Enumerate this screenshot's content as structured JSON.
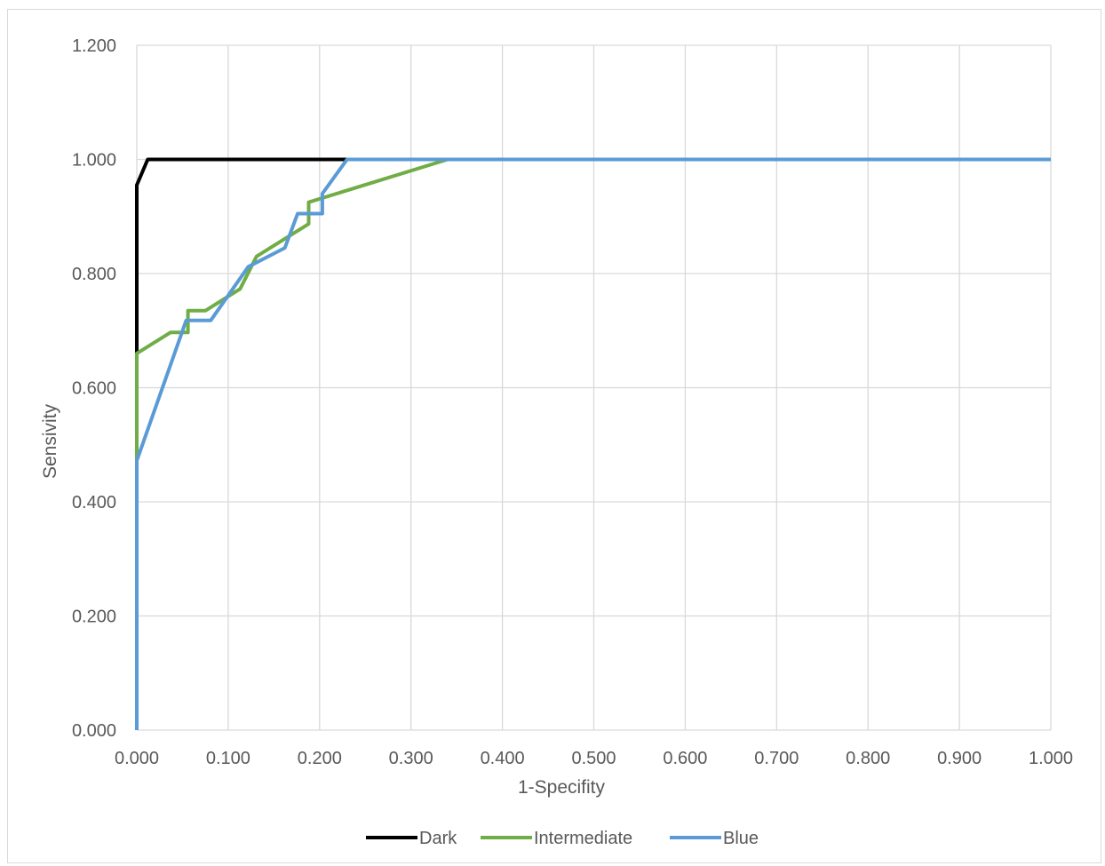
{
  "chart_data": {
    "type": "line",
    "title": "",
    "xlabel": "1-Specifity",
    "ylabel": "Sensivity",
    "xlim": [
      0,
      1
    ],
    "ylim": [
      0,
      1.2
    ],
    "x_ticks": [
      "0.000",
      "0.100",
      "0.200",
      "0.300",
      "0.400",
      "0.500",
      "0.600",
      "0.700",
      "0.800",
      "0.900",
      "1.000"
    ],
    "y_ticks": [
      "0.000",
      "0.200",
      "0.400",
      "0.600",
      "0.800",
      "1.000",
      "1.200"
    ],
    "grid": true,
    "legend_position": "bottom",
    "series": [
      {
        "name": "Dark",
        "color": "#000000",
        "points": [
          [
            0,
            0
          ],
          [
            0,
            0.66
          ],
          [
            0,
            0.955
          ],
          [
            0.012,
            1.0
          ],
          [
            0.23,
            1.0
          ],
          [
            1.0,
            1.0
          ]
        ]
      },
      {
        "name": "Intermediate",
        "color": "#70ad47",
        "points": [
          [
            0,
            0
          ],
          [
            0,
            0.66
          ],
          [
            0.037,
            0.697
          ],
          [
            0.056,
            0.697
          ],
          [
            0.056,
            0.735
          ],
          [
            0.075,
            0.735
          ],
          [
            0.113,
            0.773
          ],
          [
            0.131,
            0.83
          ],
          [
            0.188,
            0.887
          ],
          [
            0.188,
            0.925
          ],
          [
            0.34,
            1.0
          ],
          [
            1.0,
            1.0
          ]
        ]
      },
      {
        "name": "Blue",
        "color": "#5b9bd5",
        "points": [
          [
            0,
            0
          ],
          [
            0,
            0.472
          ],
          [
            0.054,
            0.718
          ],
          [
            0.081,
            0.718
          ],
          [
            0.122,
            0.812
          ],
          [
            0.162,
            0.845
          ],
          [
            0.176,
            0.905
          ],
          [
            0.176,
            0.905
          ],
          [
            0.203,
            0.905
          ],
          [
            0.203,
            0.94
          ],
          [
            0.23,
            1.0
          ],
          [
            1.0,
            1.0
          ]
        ]
      }
    ]
  }
}
